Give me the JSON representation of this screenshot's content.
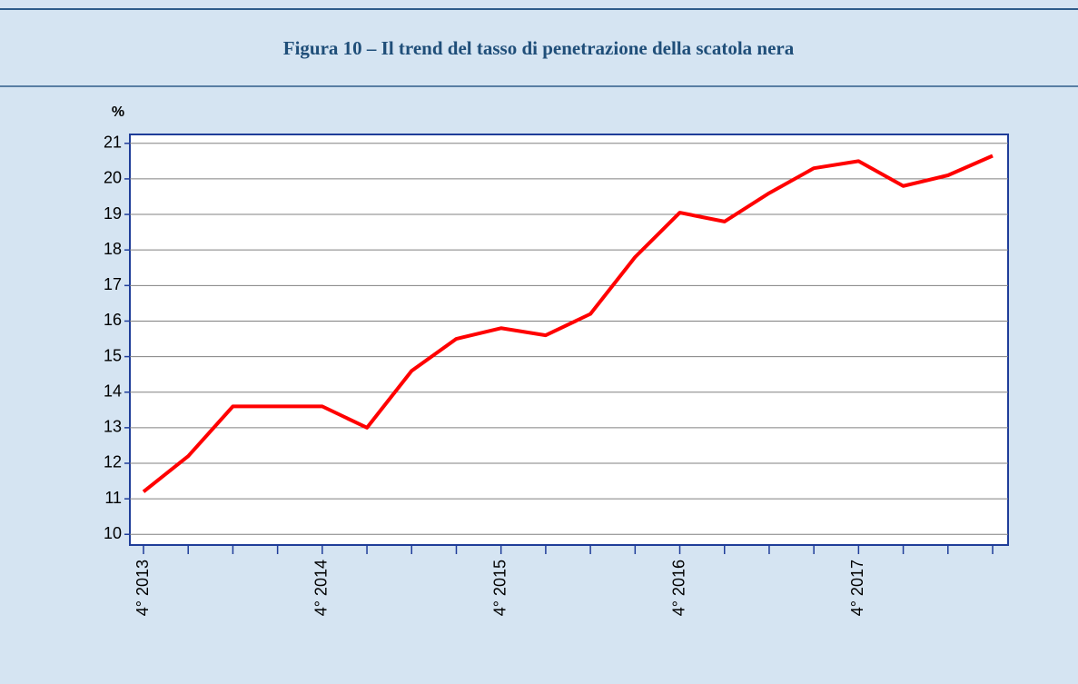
{
  "chart_data": {
    "type": "line",
    "title": "Figura 10 – Il trend del tasso di penetrazione della scatola nera",
    "y_label": "%",
    "categories": [
      "4° 2013",
      null,
      null,
      null,
      "4° 2014",
      null,
      null,
      null,
      "4° 2015",
      null,
      null,
      null,
      "4° 2016",
      null,
      null,
      null,
      "4° 2017",
      null,
      null,
      null
    ],
    "values": [
      11.2,
      12.2,
      13.6,
      13.6,
      13.6,
      13.0,
      14.6,
      15.5,
      15.8,
      15.6,
      16.2,
      17.8,
      19.05,
      18.8,
      19.6,
      20.3,
      20.5,
      19.8,
      20.1,
      20.65
    ],
    "color": "#ff0000",
    "ylim": [
      9.7,
      21.25
    ],
    "yticks": [
      10,
      11,
      12,
      13,
      14,
      15,
      16,
      17,
      18,
      19,
      20,
      21
    ],
    "grid": true
  }
}
